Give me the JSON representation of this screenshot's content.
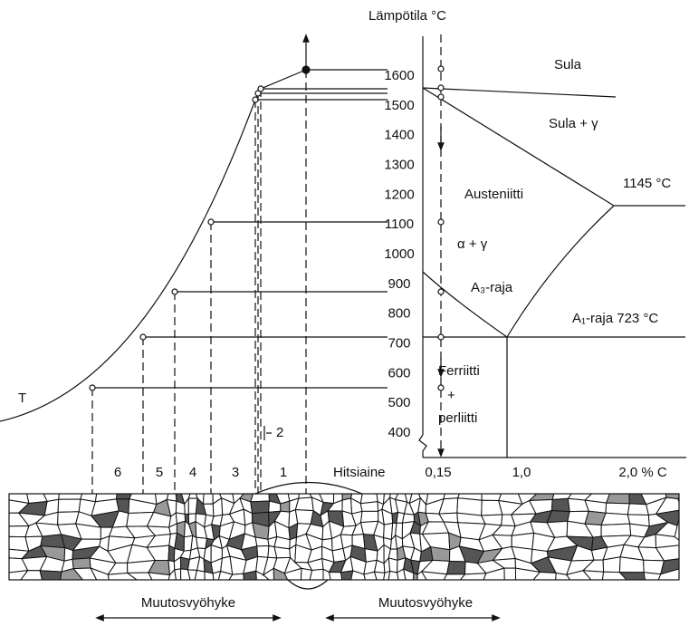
{
  "axis": {
    "title": "Lämpötila °C",
    "ticks": [
      1600,
      1500,
      1400,
      1300,
      1200,
      1100,
      1000,
      900,
      800,
      700,
      600,
      500,
      400
    ]
  },
  "composition_ticks": [
    "0,15",
    "1,0",
    "2,0 % C"
  ],
  "phases": {
    "liquid": "Sula",
    "liquid_gamma": "Sula + γ",
    "austenite": "Austeniitti",
    "eutectic": "1145 °C",
    "alpha_gamma": "α + γ",
    "a3": "A₃-raja",
    "a1": "A₁-raja 723 °C",
    "ferrite": "Ferriitti",
    "plus": "+",
    "pearlite": "perliitti"
  },
  "curve_label": "T",
  "zones": [
    "6",
    "5",
    "4",
    "3",
    "2",
    "1"
  ],
  "weld_label": "Hitsiaine",
  "zone_spans": [
    "Muutosvyöhyke",
    "Muutosvyöhyke"
  ]
}
